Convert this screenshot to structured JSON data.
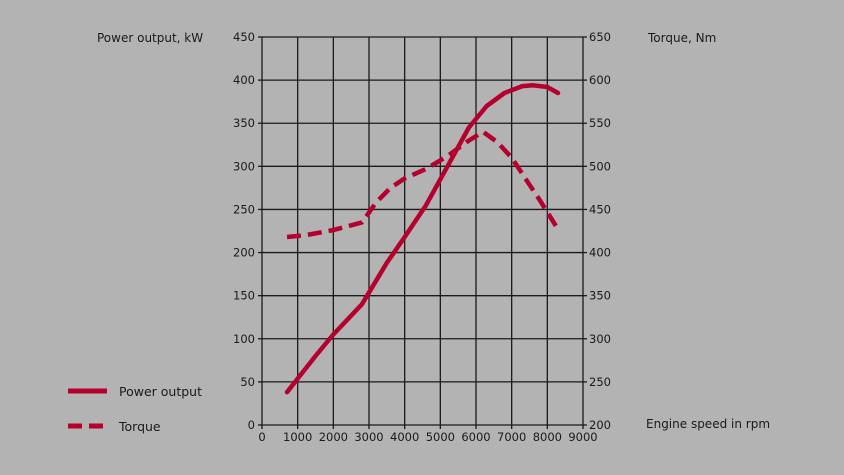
{
  "chart_data": {
    "type": "line",
    "x_label": "Engine speed in rpm",
    "y_left_label": "Power output, kW",
    "y_right_label": "Torque, Nm",
    "x_ticks": [
      0,
      1000,
      2000,
      3000,
      4000,
      5000,
      6000,
      7000,
      8000,
      9000
    ],
    "y_left_ticks": [
      0,
      50,
      100,
      150,
      200,
      250,
      300,
      350,
      400,
      450
    ],
    "y_right_ticks": [
      200,
      250,
      300,
      350,
      400,
      450,
      500,
      550,
      600,
      650
    ],
    "xlim": [
      0,
      9000
    ],
    "ylim_left": [
      0,
      450
    ],
    "ylim_right": [
      200,
      650
    ],
    "grid": true,
    "legend_position": "bottom-left",
    "series_color": "#b5002e",
    "series": [
      {
        "name": "Power output",
        "axis": "left",
        "style": "solid",
        "x": [
          700,
          1500,
          2000,
          2800,
          3500,
          4000,
          4600,
          5200,
          5800,
          6300,
          6800,
          7300,
          7600,
          8000,
          8300
        ],
        "y": [
          38,
          80,
          105,
          140,
          188,
          218,
          255,
          300,
          345,
          370,
          385,
          393,
          394,
          392,
          385
        ]
      },
      {
        "name": "Torque",
        "axis": "right",
        "style": "dashed",
        "x": [
          700,
          1200,
          2000,
          2800,
          3200,
          3600,
          4000,
          4600,
          5200,
          5800,
          6200,
          6600,
          7000,
          7400,
          7800,
          8300
        ],
        "y": [
          418,
          420,
          426,
          435,
          458,
          475,
          486,
          497,
          512,
          530,
          540,
          528,
          510,
          485,
          460,
          427
        ]
      }
    ]
  }
}
